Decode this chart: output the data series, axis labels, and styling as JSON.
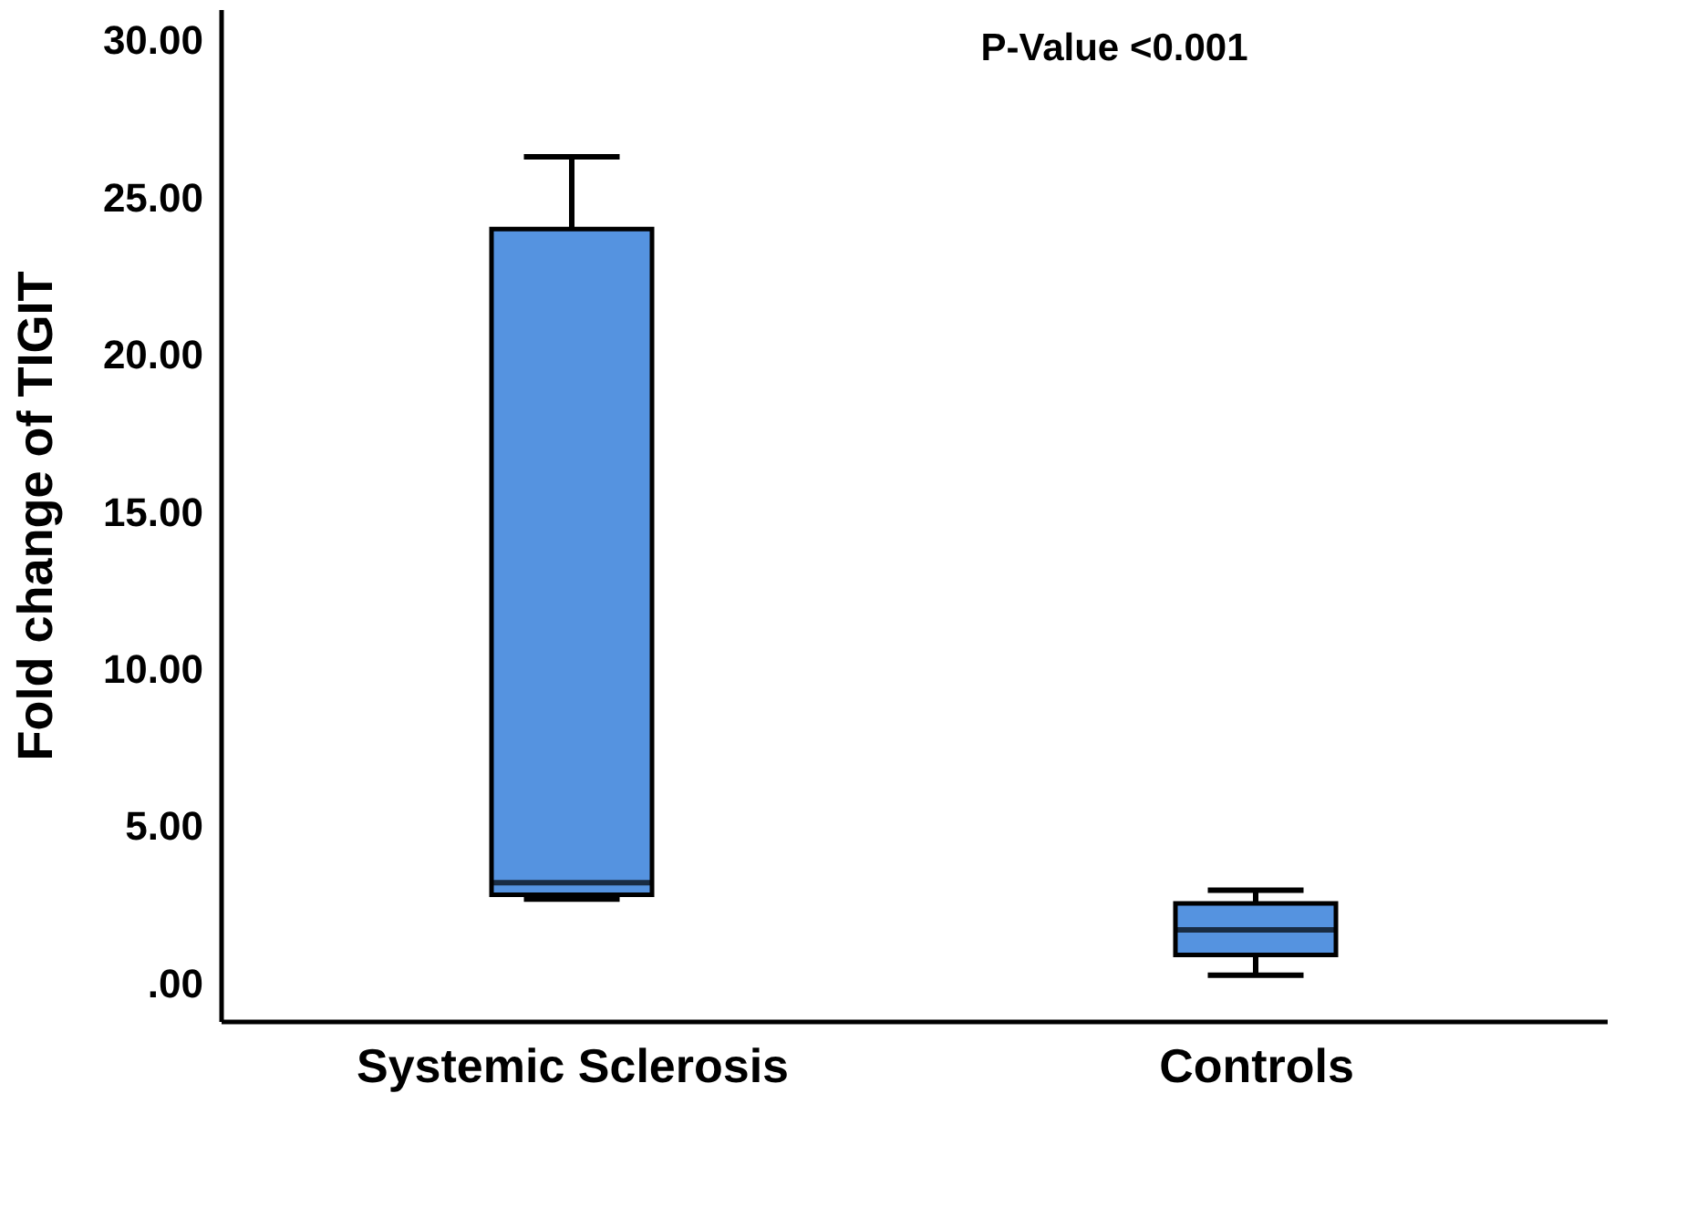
{
  "chart_data": {
    "type": "box",
    "ylabel": "Fold change of TIGIT",
    "categories": [
      "Systemic Sclerosis",
      "Controls"
    ],
    "boxes": [
      {
        "low": 2.68,
        "q1": 2.82,
        "median": 3.2,
        "q3": 24.0,
        "high": 26.3
      },
      {
        "low": 0.26,
        "q1": 0.9,
        "median": 1.7,
        "q3": 2.54,
        "high": 2.96
      }
    ],
    "color": "#5593e0",
    "ylim": [
      -1.2,
      31
    ],
    "yticks": [
      {
        "value": 0,
        "label": ".00"
      },
      {
        "value": 5,
        "label": "5.00"
      },
      {
        "value": 10,
        "label": "10.00"
      },
      {
        "value": 15,
        "label": "15.00"
      },
      {
        "value": 20,
        "label": "20.00"
      },
      {
        "value": 25,
        "label": "25.00"
      },
      {
        "value": 30,
        "label": "30.00"
      }
    ],
    "annotations": [
      "P-Value <0.001"
    ],
    "grid": false
  }
}
